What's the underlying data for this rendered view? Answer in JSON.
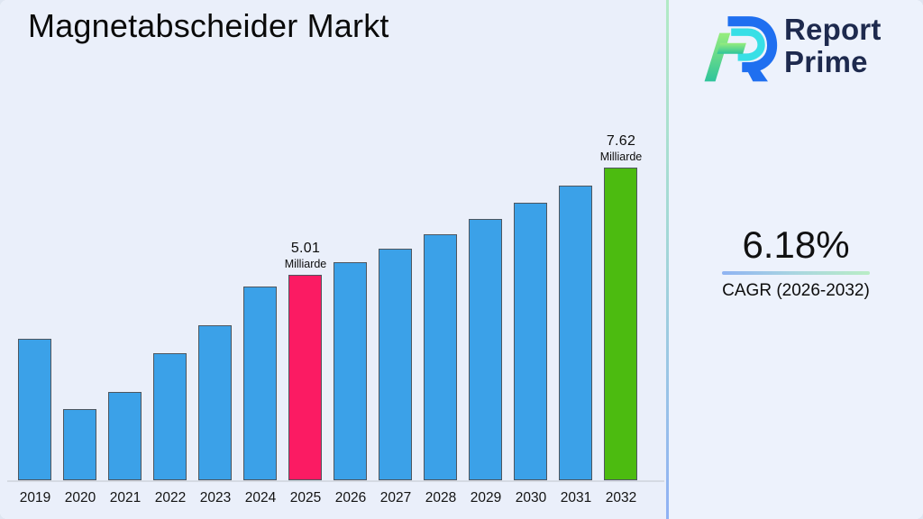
{
  "title": "Magnetabscheider Markt",
  "logo": {
    "line1": "Report",
    "line2": "Prime",
    "text_color": "#1e2a4e"
  },
  "cagr": {
    "value": "6.18%",
    "label": "CAGR (2026-2032)"
  },
  "colors": {
    "bar_blue": "#3BA1E8",
    "bar_pink": "#FB1B63",
    "bar_green": "#4CBB10",
    "bar_border": "#4e565f",
    "background_left": "#eaeffa",
    "background_right": "#edf2fc",
    "divider_top": "#b2eac5",
    "divider_bottom": "#90b1f4",
    "underline_left": "#8fb3f2",
    "underline_right": "#b9edc5",
    "logo_blue": "#1F6FF0",
    "logo_cyan": "#38DFE6",
    "logo_green_light": "#97ED7D",
    "logo_green_dark": "#2EC49B"
  },
  "chart_data": {
    "type": "bar",
    "title": "Magnetabscheider Markt",
    "unit": "Milliarde",
    "xlabel": "",
    "ylabel": "",
    "grid": false,
    "ylim": [
      0,
      8.5
    ],
    "categories": [
      "2019",
      "2020",
      "2021",
      "2022",
      "2023",
      "2024",
      "2025",
      "2026",
      "2027",
      "2028",
      "2029",
      "2030",
      "2031",
      "2032"
    ],
    "values": [
      3.44,
      1.73,
      2.16,
      3.1,
      3.78,
      4.72,
      5.01,
      5.32,
      5.65,
      6.0,
      6.37,
      6.76,
      7.18,
      7.62
    ],
    "highlight_colors": {
      "2025": "#FB1B63",
      "2032": "#4CBB10"
    },
    "default_color": "#3BA1E8",
    "annotations": [
      {
        "category": "2025",
        "value_label": "5.01",
        "unit_label": "Milliarde"
      },
      {
        "category": "2032",
        "value_label": "7.62",
        "unit_label": "Milliarde"
      }
    ]
  }
}
